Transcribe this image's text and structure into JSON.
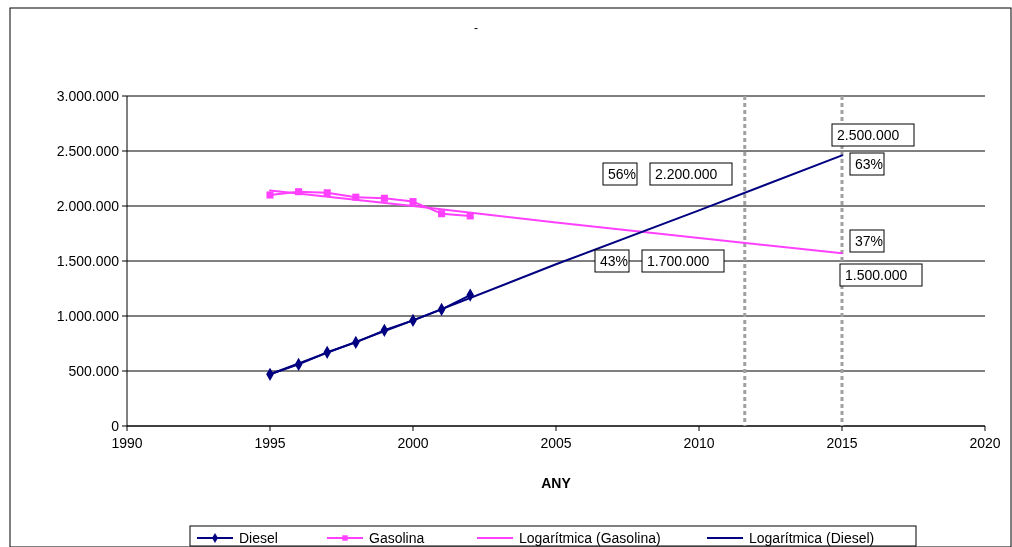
{
  "chart_data": {
    "type": "line",
    "title": "-",
    "xlabel": "ANY",
    "xlim": [
      1990,
      2020
    ],
    "xticks": [
      1990,
      1995,
      2000,
      2005,
      2010,
      2015,
      2020
    ],
    "ylim": [
      0,
      3000000
    ],
    "yticks": [
      {
        "value": 0,
        "label": "0"
      },
      {
        "value": 500000,
        "label": "500.000"
      },
      {
        "value": 1000000,
        "label": "1.000.000"
      },
      {
        "value": 1500000,
        "label": "1.500.000"
      },
      {
        "value": 2000000,
        "label": "2.000.000"
      },
      {
        "value": 2500000,
        "label": "2.500.000"
      },
      {
        "value": 3000000,
        "label": "3.000.000"
      }
    ],
    "grid": "y",
    "legend": "bottom",
    "line_style": "solid",
    "series": [
      {
        "name": "Diesel",
        "color": "#000080",
        "marker": "diamond",
        "x": [
          1995,
          1996,
          1997,
          1998,
          1999,
          2000,
          2001,
          2002
        ],
        "values": [
          470000,
          560000,
          670000,
          760000,
          870000,
          960000,
          1060000,
          1190000
        ]
      },
      {
        "name": "Gasolina",
        "color": "#ff40ff",
        "marker": "square",
        "x": [
          1995,
          1996,
          1997,
          1998,
          1999,
          2000,
          2001,
          2002
        ],
        "values": [
          2100000,
          2130000,
          2120000,
          2080000,
          2070000,
          2040000,
          1930000,
          1910000
        ]
      },
      {
        "name": "Logarítmica (Gasolina)",
        "color": "#ff40ff",
        "marker": "none",
        "x": [
          1995,
          2000,
          2005,
          2010,
          2015
        ],
        "values": [
          2140000,
          2000000,
          1850000,
          1710000,
          1570000
        ]
      },
      {
        "name": "Logarítmica (Diesel)",
        "color": "#000080",
        "marker": "none",
        "x": [
          1995,
          2000,
          2005,
          2010,
          2015
        ],
        "values": [
          470000,
          960000,
          1470000,
          1960000,
          2460000
        ]
      }
    ],
    "ref_lines": [
      {
        "axis": "x",
        "value": 2011.6,
        "color": "#a0a0a0",
        "line_style": "dashed"
      },
      {
        "axis": "x",
        "value": 2015,
        "color": "#a0a0a0",
        "line_style": "dashed"
      }
    ],
    "annotations": [
      "56%",
      "2.200.000",
      "2.500.000",
      "63%",
      "37%",
      "1.500.000",
      "43%",
      "1.700.000"
    ]
  }
}
